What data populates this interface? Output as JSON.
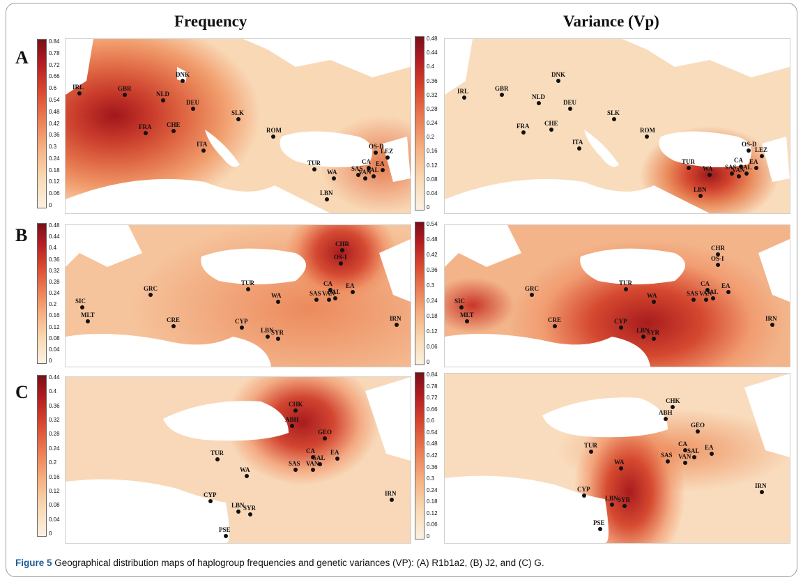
{
  "figure": {
    "col_headers": [
      "Frequency",
      "Variance (Vp)"
    ],
    "row_labels": [
      "A",
      "B",
      "C"
    ],
    "caption_label": "Figure 5",
    "caption_text": " Geographical distribution maps of haplogroup frequencies and genetic variances (VP): (A) R1b1a2, (B) J2, and (C) G."
  },
  "colorbars": {
    "A_freq": [
      "0.84",
      "0.78",
      "0.72",
      "0.66",
      "0.6",
      "0.54",
      "0.48",
      "0.42",
      "0.36",
      "0.3",
      "0.24",
      "0.18",
      "0.12",
      "0.06",
      "0"
    ],
    "A_var": [
      "0.48",
      "0.44",
      "0.4",
      "0.36",
      "0.32",
      "0.28",
      "0.24",
      "0.2",
      "0.16",
      "0.12",
      "0.08",
      "0.04",
      "0"
    ],
    "B_freq": [
      "0.48",
      "0.44",
      "0.4",
      "0.36",
      "0.32",
      "0.28",
      "0.24",
      "0.2",
      "0.16",
      "0.12",
      "0.08",
      "0.04",
      "0"
    ],
    "B_var": [
      "0.54",
      "0.48",
      "0.42",
      "0.36",
      "0.3",
      "0.24",
      "0.18",
      "0.12",
      "0.06",
      "0"
    ],
    "C_freq": [
      "0.44",
      "0.4",
      "0.36",
      "0.32",
      "0.28",
      "0.24",
      "0.2",
      "0.16",
      "0.12",
      "0.08",
      "0.04",
      "0"
    ],
    "C_var": [
      "0.84",
      "0.78",
      "0.72",
      "0.66",
      "0.6",
      "0.54",
      "0.48",
      "0.42",
      "0.36",
      "0.3",
      "0.24",
      "0.18",
      "0.12",
      "0.06",
      "0"
    ]
  },
  "points": {
    "A_freq": [
      "IRL",
      "GBR",
      "NLD",
      "DNK",
      "DEU",
      "FRA",
      "CHE",
      "ITA",
      "SLK",
      "ROM",
      "TUR",
      "WA",
      "LBN",
      "OS-D",
      "LEZ",
      "CA",
      "EA",
      "SAS",
      "SAL",
      "VAN"
    ],
    "A_var": [
      "IRL",
      "GBR",
      "DNK",
      "NLD",
      "DEU",
      "SLK",
      "FRA",
      "CHE",
      "ITA",
      "ROM",
      "TUR",
      "WA",
      "LBN",
      "OS-D",
      "LEZ",
      "CA",
      "EA",
      "SAS",
      "SAL",
      "VAN"
    ],
    "B_freq": [
      "CHR",
      "OS-I",
      "SIC",
      "MLT",
      "GRC",
      "CRE",
      "CYP",
      "TUR",
      "WA",
      "LBN",
      "SYR",
      "SAS",
      "CA",
      "EA",
      "SAL",
      "VAN",
      "IRN"
    ],
    "B_var": [
      "CHR",
      "OS-I",
      "SIC",
      "MLT",
      "GRC",
      "CRE",
      "CYP",
      "TUR",
      "WA",
      "LBN",
      "SYR",
      "SAS",
      "CA",
      "EA",
      "SAL",
      "VAN",
      "IRN"
    ],
    "C_freq": [
      "CHK",
      "ABH",
      "GEO",
      "TUR",
      "WA",
      "SAS",
      "CA",
      "EA",
      "SAL",
      "VAN",
      "CYP",
      "LBN",
      "SYR",
      "PSE",
      "IRN"
    ],
    "C_var": [
      "CHK",
      "ABH",
      "GEO",
      "TUR",
      "WA",
      "SAS",
      "CA",
      "EA",
      "SAL",
      "VAN",
      "CYP",
      "LBN",
      "SYR",
      "PSE",
      "IRN"
    ]
  }
}
